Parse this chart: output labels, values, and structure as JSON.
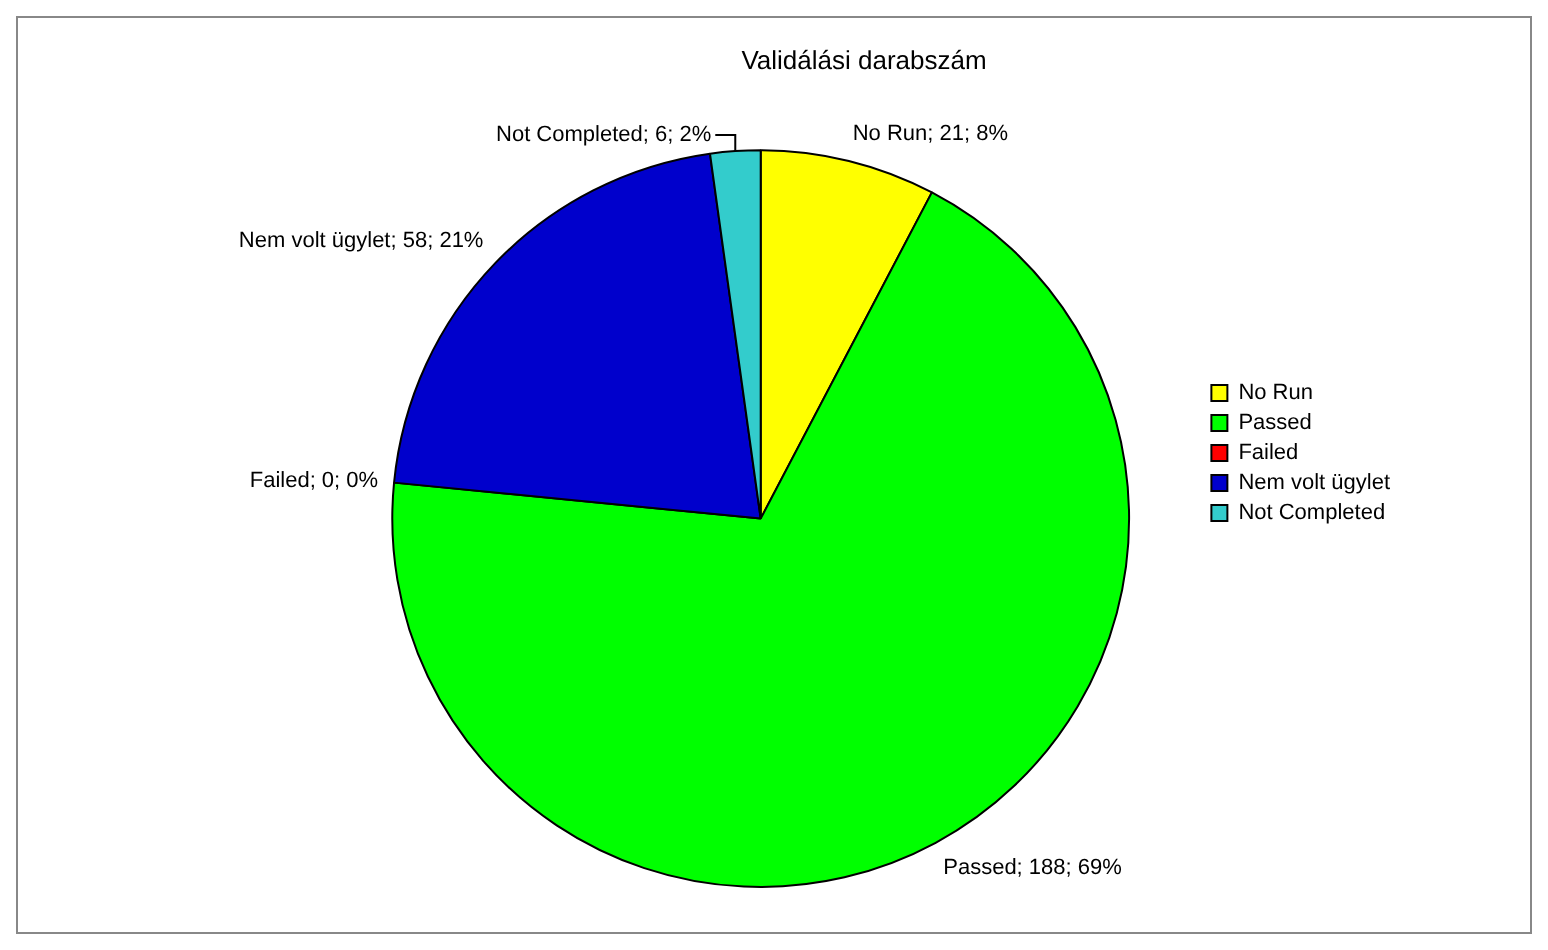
{
  "chart_data": {
    "type": "pie",
    "title": "Validálási darabszám",
    "categories": [
      "No Run",
      "Passed",
      "Failed",
      "Nem volt ügylet",
      "Not Completed"
    ],
    "values": [
      21,
      188,
      0,
      58,
      6
    ],
    "colors": [
      "#ffff00",
      "#00ff00",
      "#ff0000",
      "#0000cc",
      "#33cccc"
    ],
    "value_labels": [
      "No Run; 21; 8%",
      "Passed; 188; 69%",
      "Failed; 0; 0%",
      "Nem volt ügylet; 58; 21%",
      "Not Completed; 6; 2%"
    ],
    "legend": "right"
  }
}
